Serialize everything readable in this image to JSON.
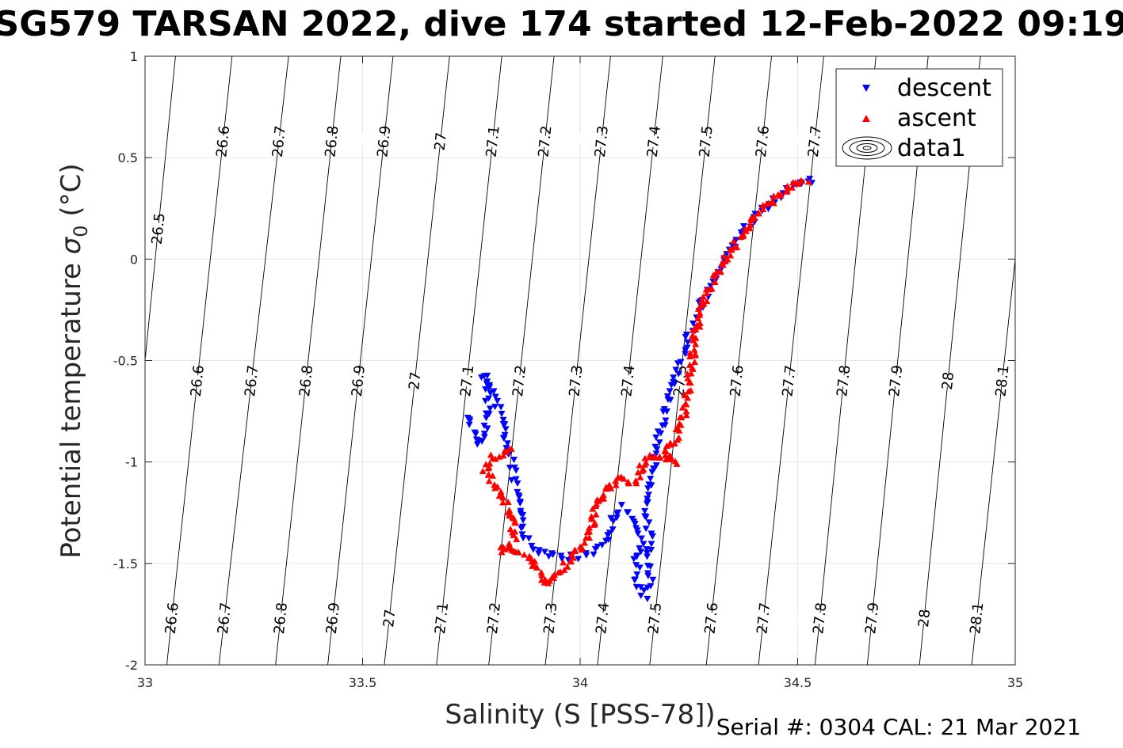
{
  "chart_data": {
    "type": "scatter",
    "title": "SG579 TARSAN 2022, dive 174 started 12-Feb-2022 09:19",
    "xlabel": "Salinity (S [PSS-78])",
    "ylabel": "Potential temperature",
    "ylabel_symbol": "σ",
    "ylabel_subscript": "0",
    "ylabel_unit": "(°C)",
    "xlim": [
      33,
      35
    ],
    "ylim": [
      -2,
      1
    ],
    "xticks": [
      33,
      33.5,
      34,
      34.5,
      35
    ],
    "xtick_labels": [
      "33",
      "33.5",
      "34",
      "34.5",
      "35"
    ],
    "yticks": [
      -2,
      -1.5,
      -1,
      -0.5,
      0,
      0.5,
      1
    ],
    "ytick_labels": [
      "-2",
      "-1.5",
      "-1",
      "-0.5",
      "0",
      "0.5",
      "1"
    ],
    "grid": true,
    "legend_position": "top-right",
    "density_contours": {
      "levels": [
        "26.5",
        "26.6",
        "26.7",
        "26.8",
        "26.9",
        "27",
        "27.1",
        "27.2",
        "27.3",
        "27.4",
        "27.5",
        "27.6",
        "27.7",
        "27.8",
        "27.9",
        "28",
        "28.1"
      ],
      "salinity_at_theta_minus2": [
        32.93,
        33.05,
        33.17,
        33.3,
        33.42,
        33.55,
        33.67,
        33.79,
        33.92,
        34.04,
        34.16,
        34.29,
        34.41,
        34.54,
        34.66,
        34.78,
        34.9
      ],
      "salinity_at_theta_plus1": [
        33.07,
        33.2,
        33.33,
        33.45,
        33.57,
        33.7,
        33.82,
        33.94,
        34.07,
        34.19,
        34.31,
        34.44,
        34.56,
        34.68,
        34.8,
        34.92,
        35.05
      ],
      "label_theta": {
        "upper": 0.58,
        "middle": -0.6,
        "lower": -1.77,
        "left_first": 0.15
      },
      "upper_labels": [
        "26.5",
        "26.6",
        "26.7",
        "26.8",
        "26.9",
        "27",
        "27.1",
        "27.2",
        "27.3",
        "27.4",
        "27.5",
        "27.6",
        "27.7"
      ],
      "middle_labels": [
        "26.6",
        "26.7",
        "26.8",
        "26.9",
        "27",
        "27.1",
        "27.2",
        "27.3",
        "27.4",
        "27.5",
        "27.6",
        "27.7",
        "27.8",
        "27.9",
        "28",
        "28.1"
      ],
      "lower_labels": [
        "26.6",
        "26.7",
        "26.8",
        "26.9",
        "27",
        "27.1",
        "27.2",
        "27.3",
        "27.4",
        "27.5",
        "27.6",
        "27.7",
        "27.8",
        "27.9",
        "28",
        "28.1"
      ]
    },
    "series": [
      {
        "name": "descent",
        "marker": "triangle-down",
        "color": "#0000ff",
        "path": [
          [
            34.54,
            0.39
          ],
          [
            34.5,
            0.38
          ],
          [
            34.46,
            0.32
          ],
          [
            34.42,
            0.25
          ],
          [
            34.38,
            0.15
          ],
          [
            34.35,
            0.06
          ],
          [
            34.32,
            -0.04
          ],
          [
            34.3,
            -0.13
          ],
          [
            34.28,
            -0.22
          ],
          [
            34.26,
            -0.33
          ],
          [
            34.24,
            -0.45
          ],
          [
            34.22,
            -0.58
          ],
          [
            34.2,
            -0.72
          ],
          [
            34.18,
            -0.86
          ],
          [
            34.17,
            -0.98
          ],
          [
            34.16,
            -1.1
          ],
          [
            34.15,
            -1.22
          ],
          [
            34.16,
            -1.35
          ],
          [
            34.16,
            -1.5
          ],
          [
            34.16,
            -1.6
          ],
          [
            34.15,
            -1.66
          ],
          [
            34.13,
            -1.6
          ],
          [
            34.13,
            -1.5
          ],
          [
            34.14,
            -1.38
          ],
          [
            34.12,
            -1.28
          ],
          [
            34.1,
            -1.22
          ],
          [
            34.08,
            -1.25
          ],
          [
            34.06,
            -1.38
          ],
          [
            34.04,
            -1.43
          ],
          [
            34.01,
            -1.46
          ],
          [
            33.98,
            -1.47
          ],
          [
            33.95,
            -1.47
          ],
          [
            33.92,
            -1.46
          ],
          [
            33.89,
            -1.42
          ],
          [
            33.87,
            -1.35
          ],
          [
            33.86,
            -1.25
          ],
          [
            33.85,
            -1.1
          ],
          [
            33.84,
            -0.98
          ],
          [
            33.83,
            -0.88
          ],
          [
            33.82,
            -0.78
          ],
          [
            33.8,
            -0.65
          ],
          [
            33.78,
            -0.57
          ],
          [
            33.79,
            -0.72
          ],
          [
            33.78,
            -0.85
          ],
          [
            33.76,
            -0.92
          ],
          [
            33.75,
            -0.8
          ],
          [
            33.74,
            -0.77
          ]
        ],
        "count": 240
      },
      {
        "name": "ascent",
        "marker": "triangle-up",
        "color": "#ff0000",
        "path": [
          [
            34.52,
            0.39
          ],
          [
            34.49,
            0.37
          ],
          [
            34.45,
            0.3
          ],
          [
            34.41,
            0.22
          ],
          [
            34.37,
            0.12
          ],
          [
            34.34,
            0.02
          ],
          [
            34.31,
            -0.08
          ],
          [
            34.29,
            -0.18
          ],
          [
            34.27,
            -0.3
          ],
          [
            34.26,
            -0.45
          ],
          [
            34.25,
            -0.6
          ],
          [
            34.24,
            -0.75
          ],
          [
            34.22,
            -0.88
          ],
          [
            34.2,
            -0.95
          ],
          [
            34.22,
            -1.0
          ],
          [
            34.18,
            -0.96
          ],
          [
            34.15,
            -0.98
          ],
          [
            34.14,
            -1.05
          ],
          [
            34.12,
            -1.1
          ],
          [
            34.1,
            -1.08
          ],
          [
            34.08,
            -1.1
          ],
          [
            34.06,
            -1.15
          ],
          [
            34.04,
            -1.2
          ],
          [
            34.03,
            -1.3
          ],
          [
            34.02,
            -1.37
          ],
          [
            34.0,
            -1.42
          ],
          [
            33.98,
            -1.47
          ],
          [
            33.95,
            -1.55
          ],
          [
            33.93,
            -1.6
          ],
          [
            33.91,
            -1.58
          ],
          [
            33.9,
            -1.52
          ],
          [
            33.88,
            -1.46
          ],
          [
            33.85,
            -1.44
          ],
          [
            33.82,
            -1.44
          ],
          [
            33.85,
            -1.38
          ],
          [
            33.84,
            -1.25
          ],
          [
            33.82,
            -1.18
          ],
          [
            33.8,
            -1.1
          ],
          [
            33.78,
            -1.04
          ],
          [
            33.8,
            -0.98
          ],
          [
            33.84,
            -0.93
          ]
        ],
        "count": 260
      },
      {
        "name": "data1",
        "marker": "contour",
        "color": "#000000"
      }
    ]
  },
  "footer": {
    "serial_text": "Serial #: 0304  CAL: 21 Mar 2021"
  }
}
